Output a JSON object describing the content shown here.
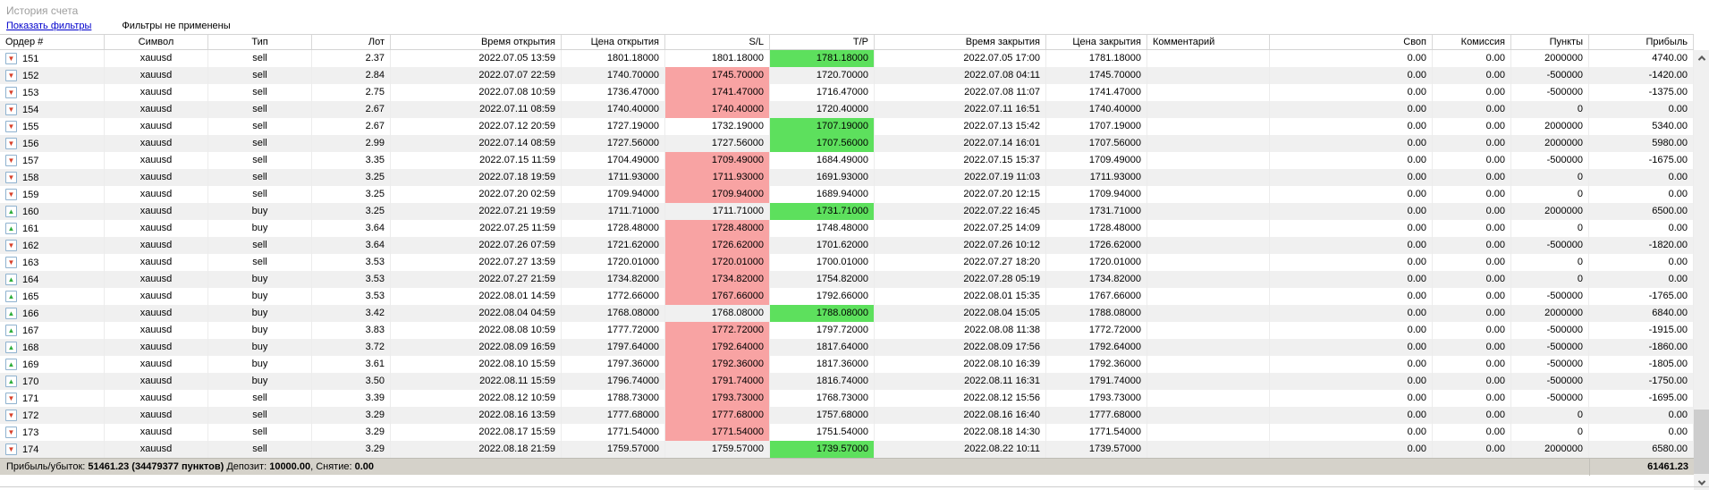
{
  "header": {
    "title": "История счета"
  },
  "filter_bar": {
    "show_filters_link": "Показать фильтры",
    "status": "Фильтры не применены"
  },
  "colors": {
    "link": "#0000cc",
    "title_text": "#9e9e9e",
    "sl_highlight": "#f8a3a3",
    "tp_highlight": "#5de05d",
    "row_alt": "#f0f0f0",
    "summary_bg": "#d5d2ca",
    "sell_arrow": "#d8402a",
    "buy_arrow": "#2fae3c"
  },
  "icons": {
    "sell_order_icon": "▼",
    "buy_order_icon": "▲",
    "scroll_up": "chevron-up",
    "scroll_down": "chevron-down"
  },
  "table": {
    "columns": [
      {
        "id": "order",
        "label": "Ордер #",
        "align": "al"
      },
      {
        "id": "symbol",
        "label": "Символ",
        "align": "ac"
      },
      {
        "id": "type",
        "label": "Тип",
        "align": "ac"
      },
      {
        "id": "lot",
        "label": "Лот",
        "align": "ar"
      },
      {
        "id": "open_time",
        "label": "Время открытия",
        "align": "ar"
      },
      {
        "id": "open_price",
        "label": "Цена открытия",
        "align": "ar"
      },
      {
        "id": "sl",
        "label": "S/L",
        "align": "ar"
      },
      {
        "id": "tp",
        "label": "T/P",
        "align": "ar"
      },
      {
        "id": "close_time",
        "label": "Время закрытия",
        "align": "ar"
      },
      {
        "id": "close_price",
        "label": "Цена закрытия",
        "align": "ar"
      },
      {
        "id": "comment",
        "label": "Комментарий",
        "align": "al"
      },
      {
        "id": "swap",
        "label": "Своп",
        "align": "ar"
      },
      {
        "id": "commission",
        "label": "Комиссия",
        "align": "ar"
      },
      {
        "id": "points",
        "label": "Пункты",
        "align": "ar"
      },
      {
        "id": "profit",
        "label": "Прибыль",
        "align": "ar"
      }
    ],
    "rows": [
      {
        "order": "151",
        "symbol": "xauusd",
        "type": "sell",
        "lot": "2.37",
        "open_time": "2022.07.05 13:59",
        "open_price": "1801.18000",
        "sl": "1801.18000",
        "sl_hit": false,
        "tp": "1781.18000",
        "tp_hit": true,
        "close_time": "2022.07.05 17:00",
        "close_price": "1781.18000",
        "comment": "",
        "swap": "0.00",
        "commission": "0.00",
        "points": "2000000",
        "profit": "4740.00"
      },
      {
        "order": "152",
        "symbol": "xauusd",
        "type": "sell",
        "lot": "2.84",
        "open_time": "2022.07.07 22:59",
        "open_price": "1740.70000",
        "sl": "1745.70000",
        "sl_hit": true,
        "tp": "1720.70000",
        "tp_hit": false,
        "close_time": "2022.07.08 04:11",
        "close_price": "1745.70000",
        "comment": "",
        "swap": "0.00",
        "commission": "0.00",
        "points": "-500000",
        "profit": "-1420.00"
      },
      {
        "order": "153",
        "symbol": "xauusd",
        "type": "sell",
        "lot": "2.75",
        "open_time": "2022.07.08 10:59",
        "open_price": "1736.47000",
        "sl": "1741.47000",
        "sl_hit": true,
        "tp": "1716.47000",
        "tp_hit": false,
        "close_time": "2022.07.08 11:07",
        "close_price": "1741.47000",
        "comment": "",
        "swap": "0.00",
        "commission": "0.00",
        "points": "-500000",
        "profit": "-1375.00"
      },
      {
        "order": "154",
        "symbol": "xauusd",
        "type": "sell",
        "lot": "2.67",
        "open_time": "2022.07.11 08:59",
        "open_price": "1740.40000",
        "sl": "1740.40000",
        "sl_hit": true,
        "tp": "1720.40000",
        "tp_hit": false,
        "close_time": "2022.07.11 16:51",
        "close_price": "1740.40000",
        "comment": "",
        "swap": "0.00",
        "commission": "0.00",
        "points": "0",
        "profit": "0.00"
      },
      {
        "order": "155",
        "symbol": "xauusd",
        "type": "sell",
        "lot": "2.67",
        "open_time": "2022.07.12 20:59",
        "open_price": "1727.19000",
        "sl": "1732.19000",
        "sl_hit": false,
        "tp": "1707.19000",
        "tp_hit": true,
        "close_time": "2022.07.13 15:42",
        "close_price": "1707.19000",
        "comment": "",
        "swap": "0.00",
        "commission": "0.00",
        "points": "2000000",
        "profit": "5340.00"
      },
      {
        "order": "156",
        "symbol": "xauusd",
        "type": "sell",
        "lot": "2.99",
        "open_time": "2022.07.14 08:59",
        "open_price": "1727.56000",
        "sl": "1727.56000",
        "sl_hit": false,
        "tp": "1707.56000",
        "tp_hit": true,
        "close_time": "2022.07.14 16:01",
        "close_price": "1707.56000",
        "comment": "",
        "swap": "0.00",
        "commission": "0.00",
        "points": "2000000",
        "profit": "5980.00"
      },
      {
        "order": "157",
        "symbol": "xauusd",
        "type": "sell",
        "lot": "3.35",
        "open_time": "2022.07.15 11:59",
        "open_price": "1704.49000",
        "sl": "1709.49000",
        "sl_hit": true,
        "tp": "1684.49000",
        "tp_hit": false,
        "close_time": "2022.07.15 15:37",
        "close_price": "1709.49000",
        "comment": "",
        "swap": "0.00",
        "commission": "0.00",
        "points": "-500000",
        "profit": "-1675.00"
      },
      {
        "order": "158",
        "symbol": "xauusd",
        "type": "sell",
        "lot": "3.25",
        "open_time": "2022.07.18 19:59",
        "open_price": "1711.93000",
        "sl": "1711.93000",
        "sl_hit": true,
        "tp": "1691.93000",
        "tp_hit": false,
        "close_time": "2022.07.19 11:03",
        "close_price": "1711.93000",
        "comment": "",
        "swap": "0.00",
        "commission": "0.00",
        "points": "0",
        "profit": "0.00"
      },
      {
        "order": "159",
        "symbol": "xauusd",
        "type": "sell",
        "lot": "3.25",
        "open_time": "2022.07.20 02:59",
        "open_price": "1709.94000",
        "sl": "1709.94000",
        "sl_hit": true,
        "tp": "1689.94000",
        "tp_hit": false,
        "close_time": "2022.07.20 12:15",
        "close_price": "1709.94000",
        "comment": "",
        "swap": "0.00",
        "commission": "0.00",
        "points": "0",
        "profit": "0.00"
      },
      {
        "order": "160",
        "symbol": "xauusd",
        "type": "buy",
        "lot": "3.25",
        "open_time": "2022.07.21 19:59",
        "open_price": "1711.71000",
        "sl": "1711.71000",
        "sl_hit": false,
        "tp": "1731.71000",
        "tp_hit": true,
        "close_time": "2022.07.22 16:45",
        "close_price": "1731.71000",
        "comment": "",
        "swap": "0.00",
        "commission": "0.00",
        "points": "2000000",
        "profit": "6500.00"
      },
      {
        "order": "161",
        "symbol": "xauusd",
        "type": "buy",
        "lot": "3.64",
        "open_time": "2022.07.25 11:59",
        "open_price": "1728.48000",
        "sl": "1728.48000",
        "sl_hit": true,
        "tp": "1748.48000",
        "tp_hit": false,
        "close_time": "2022.07.25 14:09",
        "close_price": "1728.48000",
        "comment": "",
        "swap": "0.00",
        "commission": "0.00",
        "points": "0",
        "profit": "0.00"
      },
      {
        "order": "162",
        "symbol": "xauusd",
        "type": "sell",
        "lot": "3.64",
        "open_time": "2022.07.26 07:59",
        "open_price": "1721.62000",
        "sl": "1726.62000",
        "sl_hit": true,
        "tp": "1701.62000",
        "tp_hit": false,
        "close_time": "2022.07.26 10:12",
        "close_price": "1726.62000",
        "comment": "",
        "swap": "0.00",
        "commission": "0.00",
        "points": "-500000",
        "profit": "-1820.00"
      },
      {
        "order": "163",
        "symbol": "xauusd",
        "type": "sell",
        "lot": "3.53",
        "open_time": "2022.07.27 13:59",
        "open_price": "1720.01000",
        "sl": "1720.01000",
        "sl_hit": true,
        "tp": "1700.01000",
        "tp_hit": false,
        "close_time": "2022.07.27 18:20",
        "close_price": "1720.01000",
        "comment": "",
        "swap": "0.00",
        "commission": "0.00",
        "points": "0",
        "profit": "0.00"
      },
      {
        "order": "164",
        "symbol": "xauusd",
        "type": "buy",
        "lot": "3.53",
        "open_time": "2022.07.27 21:59",
        "open_price": "1734.82000",
        "sl": "1734.82000",
        "sl_hit": true,
        "tp": "1754.82000",
        "tp_hit": false,
        "close_time": "2022.07.28 05:19",
        "close_price": "1734.82000",
        "comment": "",
        "swap": "0.00",
        "commission": "0.00",
        "points": "0",
        "profit": "0.00"
      },
      {
        "order": "165",
        "symbol": "xauusd",
        "type": "buy",
        "lot": "3.53",
        "open_time": "2022.08.01 14:59",
        "open_price": "1772.66000",
        "sl": "1767.66000",
        "sl_hit": true,
        "tp": "1792.66000",
        "tp_hit": false,
        "close_time": "2022.08.01 15:35",
        "close_price": "1767.66000",
        "comment": "",
        "swap": "0.00",
        "commission": "0.00",
        "points": "-500000",
        "profit": "-1765.00"
      },
      {
        "order": "166",
        "symbol": "xauusd",
        "type": "buy",
        "lot": "3.42",
        "open_time": "2022.08.04 04:59",
        "open_price": "1768.08000",
        "sl": "1768.08000",
        "sl_hit": false,
        "tp": "1788.08000",
        "tp_hit": true,
        "close_time": "2022.08.04 15:05",
        "close_price": "1788.08000",
        "comment": "",
        "swap": "0.00",
        "commission": "0.00",
        "points": "2000000",
        "profit": "6840.00"
      },
      {
        "order": "167",
        "symbol": "xauusd",
        "type": "buy",
        "lot": "3.83",
        "open_time": "2022.08.08 10:59",
        "open_price": "1777.72000",
        "sl": "1772.72000",
        "sl_hit": true,
        "tp": "1797.72000",
        "tp_hit": false,
        "close_time": "2022.08.08 11:38",
        "close_price": "1772.72000",
        "comment": "",
        "swap": "0.00",
        "commission": "0.00",
        "points": "-500000",
        "profit": "-1915.00"
      },
      {
        "order": "168",
        "symbol": "xauusd",
        "type": "buy",
        "lot": "3.72",
        "open_time": "2022.08.09 16:59",
        "open_price": "1797.64000",
        "sl": "1792.64000",
        "sl_hit": true,
        "tp": "1817.64000",
        "tp_hit": false,
        "close_time": "2022.08.09 17:56",
        "close_price": "1792.64000",
        "comment": "",
        "swap": "0.00",
        "commission": "0.00",
        "points": "-500000",
        "profit": "-1860.00"
      },
      {
        "order": "169",
        "symbol": "xauusd",
        "type": "buy",
        "lot": "3.61",
        "open_time": "2022.08.10 15:59",
        "open_price": "1797.36000",
        "sl": "1792.36000",
        "sl_hit": true,
        "tp": "1817.36000",
        "tp_hit": false,
        "close_time": "2022.08.10 16:39",
        "close_price": "1792.36000",
        "comment": "",
        "swap": "0.00",
        "commission": "0.00",
        "points": "-500000",
        "profit": "-1805.00"
      },
      {
        "order": "170",
        "symbol": "xauusd",
        "type": "buy",
        "lot": "3.50",
        "open_time": "2022.08.11 15:59",
        "open_price": "1796.74000",
        "sl": "1791.74000",
        "sl_hit": true,
        "tp": "1816.74000",
        "tp_hit": false,
        "close_time": "2022.08.11 16:31",
        "close_price": "1791.74000",
        "comment": "",
        "swap": "0.00",
        "commission": "0.00",
        "points": "-500000",
        "profit": "-1750.00"
      },
      {
        "order": "171",
        "symbol": "xauusd",
        "type": "sell",
        "lot": "3.39",
        "open_time": "2022.08.12 10:59",
        "open_price": "1788.73000",
        "sl": "1793.73000",
        "sl_hit": true,
        "tp": "1768.73000",
        "tp_hit": false,
        "close_time": "2022.08.12 15:56",
        "close_price": "1793.73000",
        "comment": "",
        "swap": "0.00",
        "commission": "0.00",
        "points": "-500000",
        "profit": "-1695.00"
      },
      {
        "order": "172",
        "symbol": "xauusd",
        "type": "sell",
        "lot": "3.29",
        "open_time": "2022.08.16 13:59",
        "open_price": "1777.68000",
        "sl": "1777.68000",
        "sl_hit": true,
        "tp": "1757.68000",
        "tp_hit": false,
        "close_time": "2022.08.16 16:40",
        "close_price": "1777.68000",
        "comment": "",
        "swap": "0.00",
        "commission": "0.00",
        "points": "0",
        "profit": "0.00"
      },
      {
        "order": "173",
        "symbol": "xauusd",
        "type": "sell",
        "lot": "3.29",
        "open_time": "2022.08.17 15:59",
        "open_price": "1771.54000",
        "sl": "1771.54000",
        "sl_hit": true,
        "tp": "1751.54000",
        "tp_hit": false,
        "close_time": "2022.08.18 14:30",
        "close_price": "1771.54000",
        "comment": "",
        "swap": "0.00",
        "commission": "0.00",
        "points": "0",
        "profit": "0.00"
      },
      {
        "order": "174",
        "symbol": "xauusd",
        "type": "sell",
        "lot": "3.29",
        "open_time": "2022.08.18 21:59",
        "open_price": "1759.57000",
        "sl": "1759.57000",
        "sl_hit": false,
        "tp": "1739.57000",
        "tp_hit": true,
        "close_time": "2022.08.22 10:11",
        "close_price": "1739.57000",
        "comment": "",
        "swap": "0.00",
        "commission": "0.00",
        "points": "2000000",
        "profit": "6580.00"
      }
    ]
  },
  "summary": {
    "segments": [
      {
        "text": "Прибыль/убыток: ",
        "bold": false
      },
      {
        "text": "51461.23 (34479377 пунктов)",
        "bold": true
      },
      {
        "text": " Депозит: ",
        "bold": false
      },
      {
        "text": "10000.00",
        "bold": true
      },
      {
        "text": ", Снятие: ",
        "bold": false
      },
      {
        "text": "0.00",
        "bold": true
      }
    ],
    "total": "61461.23"
  }
}
